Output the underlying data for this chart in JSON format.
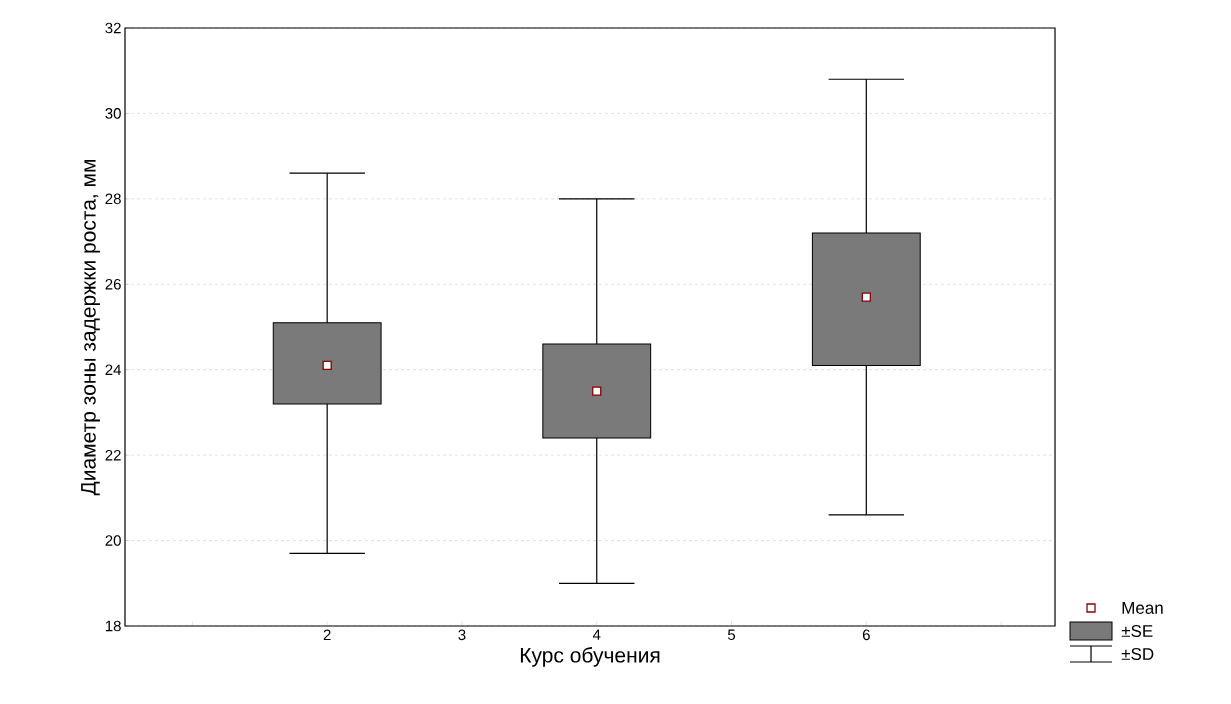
{
  "chart_data": {
    "type": "box",
    "xlabel": "Курс обучения",
    "ylabel": "Диаметр зоны задержки роста, мм",
    "xlim": [
      0.5,
      7.4
    ],
    "xticks": [
      {
        "value": 1,
        "label": null
      },
      2,
      3,
      4,
      5,
      6,
      {
        "value": 7,
        "label": null
      }
    ],
    "ylim": [
      18,
      32
    ],
    "yticks": [
      18,
      20,
      22,
      24,
      26,
      28,
      30,
      32
    ],
    "grid": "y",
    "legend": "bottom right",
    "marker": "square",
    "annotations": [
      "Mean",
      "±SD"
    ],
    "series": [
      {
        "name": "±SE",
        "color": "#7a7a7a",
        "x": [
          2,
          4,
          6
        ],
        "boxes": [
          {
            "low": 19.7,
            "q1": 23.2,
            "q3": 25.1,
            "high": 28.6,
            "mean": 24.1
          },
          {
            "low": 19.0,
            "q1": 22.4,
            "q3": 24.6,
            "high": 28.0,
            "mean": 23.5
          },
          {
            "low": 20.6,
            "q1": 24.1,
            "q3": 27.2,
            "high": 30.8,
            "mean": 25.7
          }
        ]
      }
    ]
  }
}
